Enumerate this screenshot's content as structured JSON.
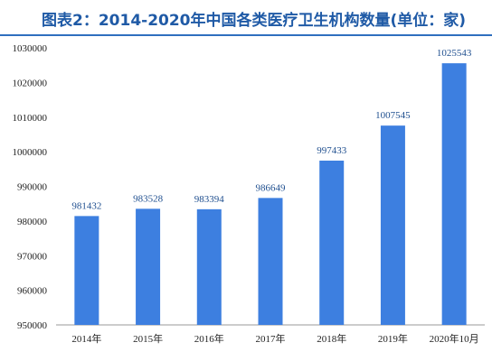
{
  "title": "图表2：2014-2020年中国各类医疗卫生机构数量(单位：家)",
  "colors": {
    "bar": "#3d7fe0",
    "title": "#1f5aa6",
    "rule": "#2f6fbf"
  },
  "chart_data": {
    "type": "bar",
    "title": "图表2：2014-2020年中国各类医疗卫生机构数量(单位：家)",
    "xlabel": "",
    "ylabel": "",
    "categories": [
      "2014年",
      "2015年",
      "2016年",
      "2017年",
      "2018年",
      "2019年",
      "2020年10月"
    ],
    "values": [
      981432,
      983528,
      983394,
      986649,
      997433,
      1007545,
      1025543
    ],
    "ylim": [
      950000,
      1030000
    ],
    "yticks": [
      950000,
      960000,
      970000,
      980000,
      990000,
      1000000,
      1010000,
      1020000,
      1030000
    ],
    "grid": false,
    "data_labels": true
  }
}
